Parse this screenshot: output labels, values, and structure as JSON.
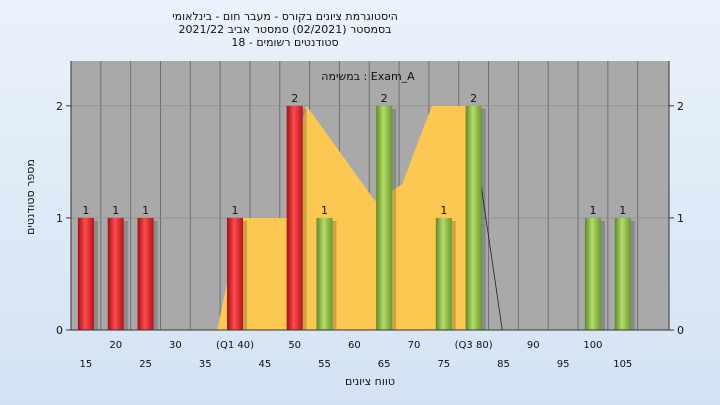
{
  "chart_data": {
    "type": "bar",
    "title_lines": [
      "היסטוגרמת ציונים בקורס - מעבר חום - בינלאומי",
      "בסמסטר  (02/2021)  סמסטר אביב 2021/22",
      "סטודנטים רשומים - 18"
    ],
    "legend_label": "במשימה : Exam_A",
    "xlabel": "טווח ציונים",
    "ylabel": "מספר סטודנטים",
    "ylim": [
      0,
      2.4
    ],
    "yticks": [
      0,
      1,
      2
    ],
    "x_tick_labels": [
      {
        "x": 15,
        "label": "15"
      },
      {
        "x": 20,
        "label": "20"
      },
      {
        "x": 25,
        "label": "25"
      },
      {
        "x": 30,
        "label": "30"
      },
      {
        "x": 35,
        "label": "35"
      },
      {
        "x": 40,
        "label": "(Q1 40)"
      },
      {
        "x": 45,
        "label": "45"
      },
      {
        "x": 50,
        "label": "50"
      },
      {
        "x": 55,
        "label": "55"
      },
      {
        "x": 60,
        "label": "60"
      },
      {
        "x": 65,
        "label": "65"
      },
      {
        "x": 70,
        "label": "70"
      },
      {
        "x": 75,
        "label": "75"
      },
      {
        "x": 80,
        "label": "(Q3 80)"
      },
      {
        "x": 85,
        "label": "85"
      },
      {
        "x": 90,
        "label": "90"
      },
      {
        "x": 95,
        "label": "95"
      },
      {
        "x": 100,
        "label": "100"
      },
      {
        "x": 105,
        "label": "105"
      }
    ],
    "bars": [
      {
        "x": 15,
        "value": 1,
        "group": "low"
      },
      {
        "x": 20,
        "value": 1,
        "group": "low"
      },
      {
        "x": 25,
        "value": 1,
        "group": "low"
      },
      {
        "x": 40,
        "value": 1,
        "group": "low"
      },
      {
        "x": 50,
        "value": 2,
        "group": "low"
      },
      {
        "x": 55,
        "value": 1,
        "group": "high"
      },
      {
        "x": 65,
        "value": 2,
        "group": "high"
      },
      {
        "x": 75,
        "value": 1,
        "group": "high"
      },
      {
        "x": 80,
        "value": 2,
        "group": "high"
      },
      {
        "x": 100,
        "value": 1,
        "group": "high"
      },
      {
        "x": 105,
        "value": 1,
        "group": "high"
      }
    ],
    "colors": {
      "plot_bg": "#a9a9a9",
      "grid": "#6f6f6f",
      "low_bar": "#e8242a",
      "high_bar": "#8fbf45",
      "area": "#ffc94d"
    }
  }
}
